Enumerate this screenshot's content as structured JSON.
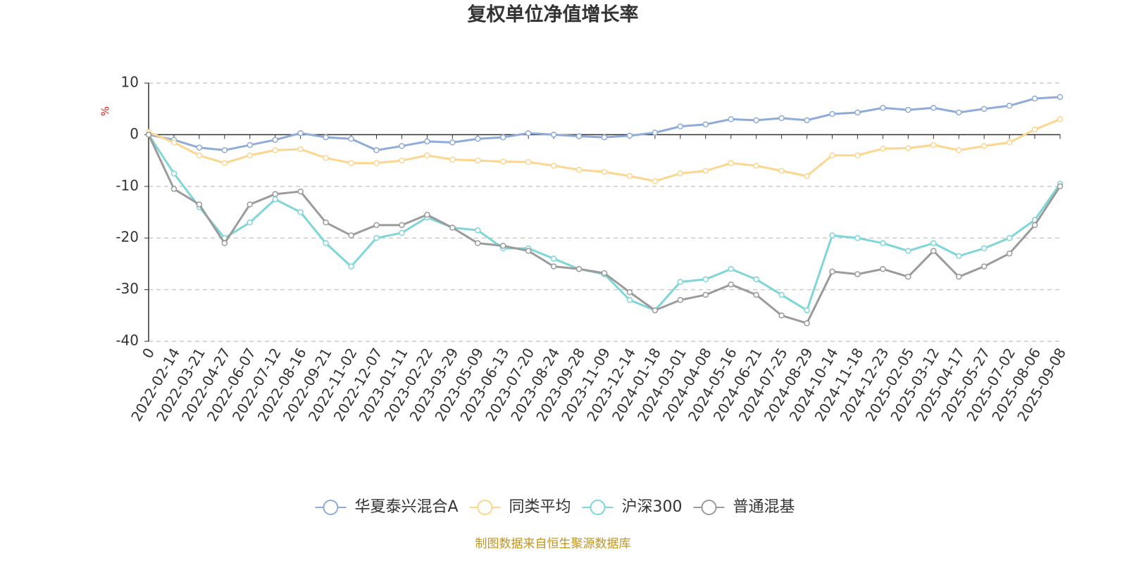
{
  "chart_data": {
    "type": "line",
    "title": "复权单位净值增长率",
    "y_label": "%",
    "source": "制图数据来自恒生聚源数据库",
    "categories": [
      "0",
      "2022-02-14",
      "2022-03-21",
      "2022-04-27",
      "2022-06-07",
      "2022-07-12",
      "2022-08-16",
      "2022-09-21",
      "2022-11-02",
      "2022-12-07",
      "2023-01-11",
      "2023-02-22",
      "2023-03-29",
      "2023-05-09",
      "2023-06-13",
      "2023-07-20",
      "2023-08-24",
      "2023-09-28",
      "2023-11-09",
      "2023-12-14",
      "2024-01-18",
      "2024-03-01",
      "2024-04-08",
      "2024-05-16",
      "2024-06-21",
      "2024-07-25",
      "2024-08-29",
      "2024-10-14",
      "2024-11-18",
      "2024-12-23",
      "2025-02-05",
      "2025-03-12",
      "2025-04-17",
      "2025-05-27",
      "2025-07-02",
      "2025-08-06",
      "2025-09-08"
    ],
    "series": [
      {
        "name": "华夏泰兴混合A",
        "color": "#8fabd9",
        "values": [
          0,
          -1,
          -2.5,
          -3,
          -2,
          -1,
          0.3,
          -0.5,
          -0.8,
          -3,
          -2.2,
          -1.3,
          -1.5,
          -0.8,
          -0.5,
          0.3,
          0,
          -0.3,
          -0.5,
          -0.2,
          0.4,
          1.6,
          2,
          3,
          2.8,
          3.2,
          2.8,
          4,
          4.3,
          5.2,
          4.8,
          5.2,
          4.3,
          5,
          5.6,
          7,
          7.3
        ]
      },
      {
        "name": "同类平均",
        "color": "#fcd68e",
        "values": [
          0.5,
          -1.5,
          -4,
          -5.5,
          -4,
          -3,
          -2.8,
          -4.5,
          -5.5,
          -5.5,
          -5,
          -4,
          -4.8,
          -5,
          -5.2,
          -5.3,
          -6,
          -6.8,
          -7.2,
          -8,
          -9,
          -7.5,
          -7,
          -5.5,
          -6,
          -7,
          -8,
          -4,
          -4,
          -2.7,
          -2.6,
          -2,
          -3,
          -2.2,
          -1.5,
          1,
          3
        ]
      },
      {
        "name": "沪深300",
        "color": "#7fd6d8",
        "values": [
          0,
          -7.5,
          -14,
          -20,
          -17,
          -12.5,
          -15,
          -21,
          -25.5,
          -20,
          -19,
          -16,
          -18,
          -18.5,
          -22,
          -22,
          -24,
          -26,
          -27,
          -32,
          -34,
          -28.5,
          -28,
          -26,
          -28,
          -31,
          -34,
          -19.5,
          -20,
          -21,
          -22.5,
          -21,
          -23.5,
          -22,
          -20,
          -16.5,
          -9.5
        ]
      },
      {
        "name": "普通混基",
        "color": "#9b9b9b",
        "values": [
          0,
          -10.5,
          -13.5,
          -21,
          -13.5,
          -11.5,
          -11,
          -17,
          -19.5,
          -17.5,
          -17.5,
          -15.5,
          -18,
          -21,
          -21.5,
          -22.5,
          -25.5,
          -26,
          -26.8,
          -30.5,
          -34,
          -32,
          -31,
          -29,
          -31,
          -35,
          -36.5,
          -26.5,
          -27,
          -26,
          -27.5,
          -22.5,
          -27.5,
          -25.5,
          -23,
          -17.5,
          -10
        ]
      }
    ],
    "ylim": [
      -40,
      10
    ],
    "yticks": [
      10,
      0,
      -10,
      -20,
      -30,
      -40
    ],
    "grid": true,
    "legend": "bottom"
  }
}
